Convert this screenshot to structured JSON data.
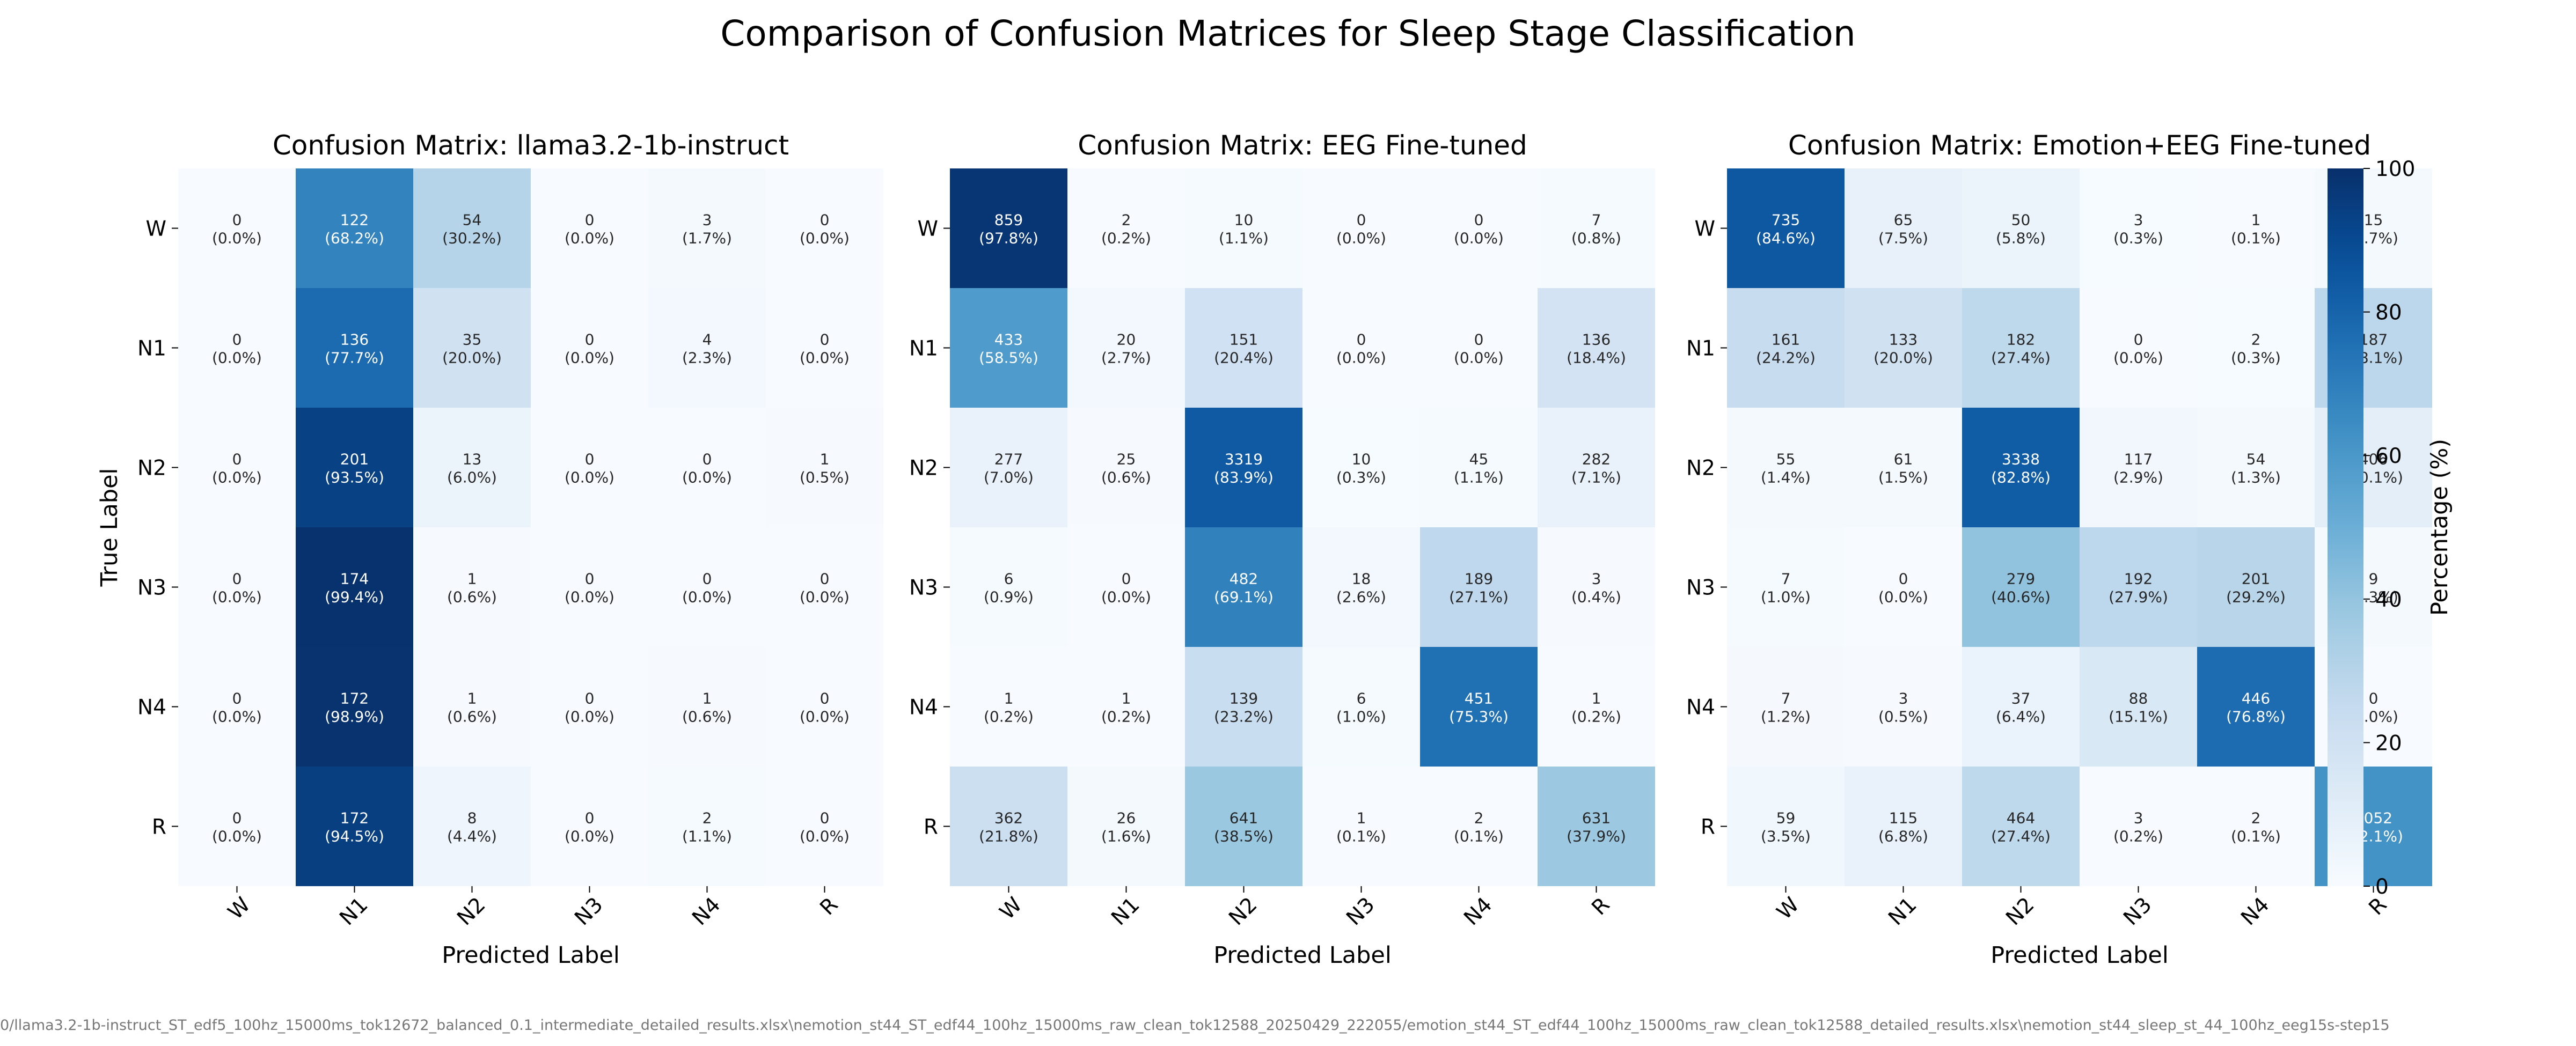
{
  "figure": {
    "title": "Comparison of Confusion Matrices for Sleep Stage Classification",
    "footer": "0/llama3.2-1b-instruct_ST_edf5_100hz_15000ms_tok12672_balanced_0.1_intermediate_detailed_results.xlsx\\nemotion_st44_ST_edf44_100hz_15000ms_raw_clean_tok12588_20250429_222055/emotion_st44_ST_edf44_100hz_15000ms_raw_clean_tok12588_detailed_results.xlsx\\nemotion_st44_sleep_st_44_100hz_eeg15s-step15"
  },
  "colorbar": {
    "label": "Percentage (%)",
    "ticks": [
      0,
      20,
      40,
      60,
      80,
      100
    ],
    "range": [
      0,
      100
    ],
    "colormap": "Blues"
  },
  "chart_data": [
    {
      "type": "heatmap",
      "title": "Confusion Matrix: llama3.2-1b-instruct",
      "xlabel": "Predicted Label",
      "ylabel": "True Label",
      "labels": [
        "W",
        "N1",
        "N2",
        "N3",
        "N4",
        "R"
      ],
      "counts": [
        [
          0,
          122,
          54,
          0,
          3,
          0
        ],
        [
          0,
          136,
          35,
          0,
          4,
          0
        ],
        [
          0,
          201,
          13,
          0,
          0,
          1
        ],
        [
          0,
          174,
          1,
          0,
          0,
          0
        ],
        [
          0,
          172,
          1,
          0,
          1,
          0
        ],
        [
          0,
          172,
          8,
          0,
          2,
          0
        ]
      ],
      "percent": [
        [
          0.0,
          68.2,
          30.2,
          0.0,
          1.7,
          0.0
        ],
        [
          0.0,
          77.7,
          20.0,
          0.0,
          2.3,
          0.0
        ],
        [
          0.0,
          93.5,
          6.0,
          0.0,
          0.0,
          0.5
        ],
        [
          0.0,
          99.4,
          0.6,
          0.0,
          0.0,
          0.0
        ],
        [
          0.0,
          98.9,
          0.6,
          0.0,
          0.6,
          0.0
        ],
        [
          0.0,
          94.5,
          4.4,
          0.0,
          1.1,
          0.0
        ]
      ]
    },
    {
      "type": "heatmap",
      "title": "Confusion Matrix: EEG Fine-tuned",
      "xlabel": "Predicted Label",
      "ylabel": "",
      "labels": [
        "W",
        "N1",
        "N2",
        "N3",
        "N4",
        "R"
      ],
      "counts": [
        [
          859,
          2,
          10,
          0,
          0,
          7
        ],
        [
          433,
          20,
          151,
          0,
          0,
          136
        ],
        [
          277,
          25,
          3319,
          10,
          45,
          282
        ],
        [
          6,
          0,
          482,
          18,
          189,
          3
        ],
        [
          1,
          1,
          139,
          6,
          451,
          1
        ],
        [
          362,
          26,
          641,
          1,
          2,
          631
        ]
      ],
      "percent": [
        [
          97.8,
          0.2,
          1.1,
          0.0,
          0.0,
          0.8
        ],
        [
          58.5,
          2.7,
          20.4,
          0.0,
          0.0,
          18.4
        ],
        [
          7.0,
          0.6,
          83.9,
          0.3,
          1.1,
          7.1
        ],
        [
          0.9,
          0.0,
          69.1,
          2.6,
          27.1,
          0.4
        ],
        [
          0.2,
          0.2,
          23.2,
          1.0,
          75.3,
          0.2
        ],
        [
          21.8,
          1.6,
          38.5,
          0.1,
          0.1,
          37.9
        ]
      ]
    },
    {
      "type": "heatmap",
      "title": "Confusion Matrix: Emotion+EEG Fine-tuned",
      "xlabel": "Predicted Label",
      "ylabel": "",
      "labels": [
        "W",
        "N1",
        "N2",
        "N3",
        "N4",
        "R"
      ],
      "counts": [
        [
          735,
          65,
          50,
          3,
          1,
          15
        ],
        [
          161,
          133,
          182,
          0,
          2,
          187
        ],
        [
          55,
          61,
          3338,
          117,
          54,
          406
        ],
        [
          7,
          0,
          279,
          192,
          201,
          9
        ],
        [
          7,
          3,
          37,
          88,
          446,
          0
        ],
        [
          59,
          115,
          464,
          3,
          2,
          1052
        ]
      ],
      "percent": [
        [
          84.6,
          7.5,
          5.8,
          0.3,
          0.1,
          1.7
        ],
        [
          24.2,
          20.0,
          27.4,
          0.0,
          0.3,
          28.1
        ],
        [
          1.4,
          1.5,
          82.8,
          2.9,
          1.3,
          10.1
        ],
        [
          1.0,
          0.0,
          40.6,
          27.9,
          29.2,
          1.3
        ],
        [
          1.2,
          0.5,
          6.4,
          15.1,
          76.8,
          0.0
        ],
        [
          3.5,
          6.8,
          27.4,
          0.2,
          0.1,
          62.1
        ]
      ]
    }
  ]
}
